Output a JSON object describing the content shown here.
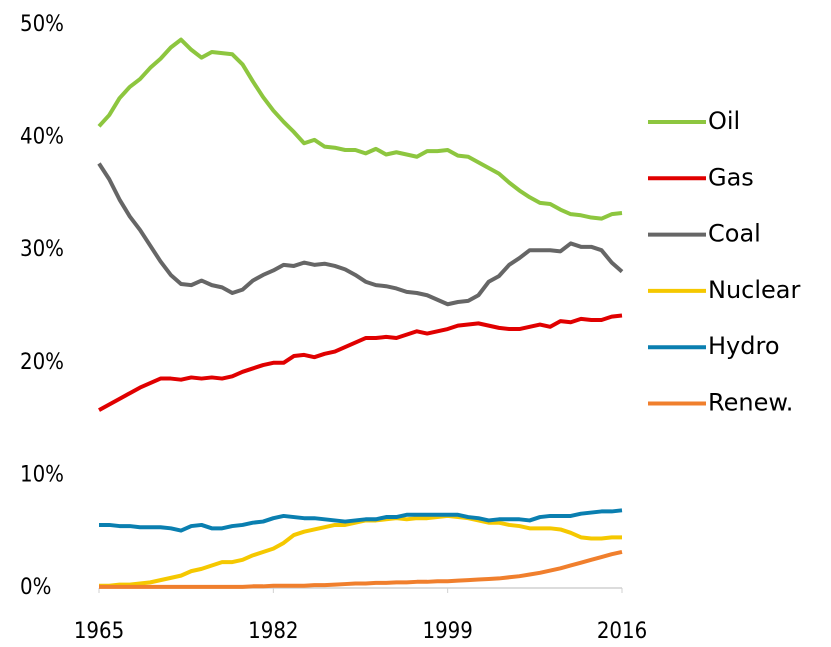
{
  "chart_data": {
    "type": "line",
    "x": [
      1965,
      1966,
      1967,
      1968,
      1969,
      1970,
      1971,
      1972,
      1973,
      1974,
      1975,
      1976,
      1977,
      1978,
      1979,
      1980,
      1981,
      1982,
      1983,
      1984,
      1985,
      1986,
      1987,
      1988,
      1989,
      1990,
      1991,
      1992,
      1993,
      1994,
      1995,
      1996,
      1997,
      1998,
      1999,
      2000,
      2001,
      2002,
      2003,
      2004,
      2005,
      2006,
      2007,
      2008,
      2009,
      2010,
      2011,
      2012,
      2013,
      2014,
      2015,
      2016
    ],
    "xlim": [
      1965,
      2016
    ],
    "xticks": [
      1965,
      1982,
      1999,
      2016
    ],
    "ylim": [
      0,
      50
    ],
    "yticks": [
      {
        "value": 0,
        "label": "0%"
      },
      {
        "value": 10,
        "label": "10%"
      },
      {
        "value": 20,
        "label": "20%"
      },
      {
        "value": 30,
        "label": "30%"
      },
      {
        "value": 40,
        "label": "40%"
      },
      {
        "value": 50,
        "label": "50%"
      }
    ],
    "grid": false,
    "legend": "right",
    "series": [
      {
        "name": "Oil",
        "color": "#8dc63f",
        "values": [
          41,
          42,
          43.5,
          44.5,
          45.2,
          46.2,
          47,
          48,
          48.7,
          47.8,
          47.1,
          47.6,
          47.5,
          47.4,
          46.5,
          45,
          43.6,
          42.4,
          41.4,
          40.5,
          39.5,
          39.8,
          39.2,
          39.1,
          38.9,
          38.9,
          38.6,
          39,
          38.5,
          38.7,
          38.5,
          38.3,
          38.8,
          38.8,
          38.9,
          38.4,
          38.3,
          37.8,
          37.3,
          36.8,
          36,
          35.3,
          34.7,
          34.2,
          34.1,
          33.6,
          33.2,
          33.1,
          32.9,
          32.8,
          33.2,
          33.3
        ]
      },
      {
        "name": "Gas",
        "color": "#e00000",
        "values": [
          15.8,
          16.3,
          16.8,
          17.3,
          17.8,
          18.2,
          18.6,
          18.6,
          18.5,
          18.7,
          18.6,
          18.7,
          18.6,
          18.8,
          19.2,
          19.5,
          19.8,
          20,
          20,
          20.6,
          20.7,
          20.5,
          20.8,
          21,
          21.4,
          21.8,
          22.2,
          22.2,
          22.3,
          22.2,
          22.5,
          22.8,
          22.6,
          22.8,
          23,
          23.3,
          23.4,
          23.5,
          23.3,
          23.1,
          23,
          23,
          23.2,
          23.4,
          23.2,
          23.7,
          23.6,
          23.9,
          23.8,
          23.8,
          24.1,
          24.2
        ]
      },
      {
        "name": "Coal",
        "color": "#666666",
        "values": [
          37.7,
          36.3,
          34.5,
          33,
          31.8,
          30.4,
          29,
          27.8,
          27,
          26.9,
          27.3,
          26.9,
          26.7,
          26.2,
          26.5,
          27.3,
          27.8,
          28.2,
          28.7,
          28.6,
          28.9,
          28.7,
          28.8,
          28.6,
          28.3,
          27.8,
          27.2,
          26.9,
          26.8,
          26.6,
          26.3,
          26.2,
          26,
          25.6,
          25.2,
          25.4,
          25.5,
          26,
          27.2,
          27.7,
          28.7,
          29.3,
          30,
          30,
          30,
          29.9,
          30.6,
          30.3,
          30.3,
          30,
          28.9,
          28.1
        ]
      },
      {
        "name": "Nuclear",
        "color": "#f5c800",
        "values": [
          0.2,
          0.2,
          0.3,
          0.3,
          0.4,
          0.5,
          0.7,
          0.9,
          1.1,
          1.5,
          1.7,
          2,
          2.3,
          2.3,
          2.5,
          2.9,
          3.2,
          3.5,
          4,
          4.7,
          5,
          5.2,
          5.4,
          5.6,
          5.6,
          5.8,
          6,
          6,
          6.1,
          6.2,
          6.1,
          6.2,
          6.2,
          6.3,
          6.4,
          6.3,
          6.2,
          6,
          5.8,
          5.8,
          5.6,
          5.5,
          5.3,
          5.3,
          5.3,
          5.2,
          4.9,
          4.5,
          4.4,
          4.4,
          4.5,
          4.5
        ]
      },
      {
        "name": "Hydro",
        "color": "#0a7fb0",
        "values": [
          5.6,
          5.6,
          5.5,
          5.5,
          5.4,
          5.4,
          5.4,
          5.3,
          5.1,
          5.5,
          5.6,
          5.3,
          5.3,
          5.5,
          5.6,
          5.8,
          5.9,
          6.2,
          6.4,
          6.3,
          6.2,
          6.2,
          6.1,
          6,
          5.9,
          6,
          6.1,
          6.1,
          6.3,
          6.3,
          6.5,
          6.5,
          6.5,
          6.5,
          6.5,
          6.5,
          6.3,
          6.2,
          6,
          6.1,
          6.1,
          6.1,
          6,
          6.3,
          6.4,
          6.4,
          6.4,
          6.6,
          6.7,
          6.8,
          6.8,
          6.9
        ]
      },
      {
        "name": "Renew.",
        "color": "#f07f2d",
        "values": [
          0.1,
          0.1,
          0.1,
          0.1,
          0.1,
          0.1,
          0.1,
          0.1,
          0.1,
          0.1,
          0.1,
          0.1,
          0.1,
          0.1,
          0.1,
          0.15,
          0.15,
          0.2,
          0.2,
          0.2,
          0.2,
          0.25,
          0.25,
          0.3,
          0.35,
          0.4,
          0.4,
          0.45,
          0.45,
          0.5,
          0.5,
          0.55,
          0.55,
          0.6,
          0.6,
          0.65,
          0.7,
          0.75,
          0.8,
          0.85,
          0.95,
          1.05,
          1.2,
          1.35,
          1.55,
          1.75,
          2,
          2.25,
          2.5,
          2.75,
          3,
          3.2
        ]
      }
    ]
  }
}
